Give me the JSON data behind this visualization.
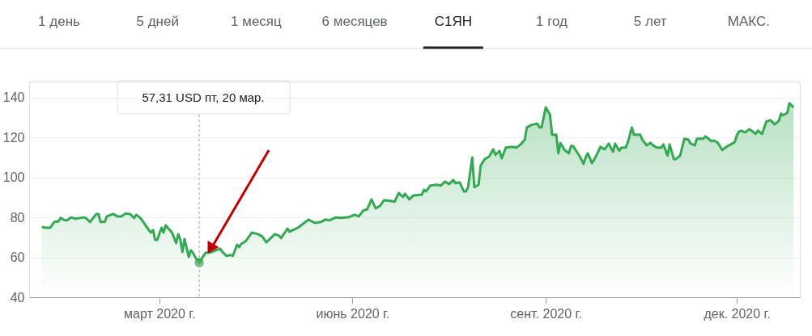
{
  "chart_data": {
    "type": "area",
    "annotations": [
      "1 день",
      "5 дней",
      "1 месяц",
      "6 месяцев",
      "С1ЯН",
      "1 год",
      "5 лет",
      "МАКС.",
      "57,31 USD  пт, 20 мар."
    ],
    "xlim": [
      "2019-12-30",
      "2020-12-31"
    ],
    "xticks": [
      {
        "value": "2020-03-01",
        "label": "март 2020 г."
      },
      {
        "value": "2020-06-01",
        "label": "июнь 2020 г."
      },
      {
        "value": "2020-09-01",
        "label": "сент. 2020 г."
      },
      {
        "value": "2020-12-01",
        "label": "дек. 2020 г."
      }
    ],
    "ylim": [
      40,
      148
    ],
    "yticks": [
      40,
      60,
      80,
      100,
      120,
      140
    ],
    "grid": "y",
    "ref_lines": [
      {
        "axis": "x",
        "value": "2020-03-20",
        "line_style": "dashed",
        "color": "#9e9e9e"
      }
    ],
    "series": [
      {
        "type": "scatter",
        "color": "#34a853",
        "x": [
          "2020-03-20"
        ],
        "values": [
          57.31
        ]
      },
      {
        "color": "#34a853",
        "x": [
          "2020-01-05",
          "2020-01-07",
          "2020-01-09",
          "2020-01-11",
          "2020-01-13",
          "2020-01-14",
          "2020-01-16",
          "2020-01-17",
          "2020-01-19",
          "2020-01-21",
          "2020-01-25",
          "2020-01-26",
          "2020-01-28",
          "2020-01-31",
          "2020-02-01",
          "2020-02-02",
          "2020-02-04",
          "2020-02-05",
          "2020-02-08",
          "2020-02-10",
          "2020-02-12",
          "2020-02-14",
          "2020-02-16",
          "2020-02-18",
          "2020-02-19",
          "2020-02-21",
          "2020-02-25",
          "2020-02-26",
          "2020-02-27",
          "2020-02-28",
          "2020-02-29",
          "2020-03-02",
          "2020-03-03",
          "2020-03-04",
          "2020-03-06",
          "2020-03-07",
          "2020-03-09",
          "2020-03-10",
          "2020-03-11",
          "2020-03-12",
          "2020-03-13",
          "2020-03-15",
          "2020-03-16",
          "2020-03-17",
          "2020-03-18",
          "2020-03-20",
          "2020-03-23",
          "2020-03-25",
          "2020-03-30",
          "2020-03-31",
          "2020-04-02",
          "2020-04-04",
          "2020-04-05",
          "2020-04-07",
          "2020-04-08",
          "2020-04-09",
          "2020-04-11",
          "2020-04-13",
          "2020-04-14",
          "2020-04-17",
          "2020-04-19",
          "2020-04-21",
          "2020-04-23",
          "2020-04-25",
          "2020-04-27",
          "2020-04-28",
          "2020-05-01",
          "2020-05-02",
          "2020-05-06",
          "2020-05-08",
          "2020-05-11",
          "2020-05-14",
          "2020-05-17",
          "2020-05-19",
          "2020-05-21",
          "2020-05-24",
          "2020-05-26",
          "2020-05-30",
          "2020-06-02",
          "2020-06-04",
          "2020-06-06",
          "2020-06-08",
          "2020-06-10",
          "2020-06-12",
          "2020-06-14",
          "2020-06-16",
          "2020-06-19",
          "2020-06-21",
          "2020-06-23",
          "2020-06-25",
          "2020-06-26",
          "2020-06-28",
          "2020-06-30",
          "2020-07-04",
          "2020-07-05",
          "2020-07-06",
          "2020-07-08",
          "2020-07-11",
          "2020-07-13",
          "2020-07-15",
          "2020-07-17",
          "2020-07-19",
          "2020-07-20",
          "2020-07-22",
          "2020-07-24",
          "2020-07-25",
          "2020-07-26",
          "2020-07-28",
          "2020-07-29",
          "2020-07-31",
          "2020-08-01",
          "2020-08-03",
          "2020-08-05",
          "2020-08-07",
          "2020-08-08",
          "2020-08-10",
          "2020-08-11",
          "2020-08-13",
          "2020-08-16",
          "2020-08-18",
          "2020-08-20",
          "2020-08-22",
          "2020-08-23",
          "2020-08-25",
          "2020-08-28",
          "2020-08-29",
          "2020-08-30",
          "2020-09-01",
          "2020-09-03",
          "2020-09-04",
          "2020-09-06",
          "2020-09-07",
          "2020-09-08",
          "2020-09-10",
          "2020-09-12",
          "2020-09-13",
          "2020-09-14",
          "2020-09-16",
          "2020-09-17",
          "2020-09-19",
          "2020-09-20",
          "2020-09-21",
          "2020-09-23",
          "2020-09-24",
          "2020-09-26",
          "2020-09-27",
          "2020-09-29",
          "2020-10-01",
          "2020-10-03",
          "2020-10-04",
          "2020-10-06",
          "2020-10-07",
          "2020-10-09",
          "2020-10-10",
          "2020-10-12",
          "2020-10-13",
          "2020-10-16",
          "2020-10-17",
          "2020-10-19",
          "2020-10-21",
          "2020-10-22",
          "2020-10-24",
          "2020-10-26",
          "2020-10-27",
          "2020-10-29",
          "2020-10-30",
          "2020-11-01",
          "2020-11-02",
          "2020-11-04",
          "2020-11-06",
          "2020-11-08",
          "2020-11-09",
          "2020-11-11",
          "2020-11-12",
          "2020-11-15",
          "2020-11-16",
          "2020-11-19",
          "2020-11-20",
          "2020-11-22",
          "2020-11-24",
          "2020-11-26",
          "2020-11-28",
          "2020-11-30",
          "2020-12-01",
          "2020-12-02",
          "2020-12-03",
          "2020-12-05",
          "2020-12-07",
          "2020-12-10",
          "2020-12-11",
          "2020-12-13",
          "2020-12-15",
          "2020-12-17",
          "2020-12-19",
          "2020-12-21",
          "2020-12-22",
          "2020-12-23",
          "2020-12-25",
          "2020-12-26",
          "2020-12-28"
        ],
        "values": [
          75.2,
          74.8,
          74.8,
          77.7,
          78,
          79.7,
          78.5,
          78.5,
          80,
          79.3,
          80,
          79.7,
          77.7,
          81.7,
          81.7,
          77.7,
          77.7,
          80.5,
          81.7,
          80.5,
          80.5,
          82,
          81.7,
          79.7,
          81.3,
          79.7,
          73.6,
          72.4,
          73.6,
          68.7,
          68.7,
          74.8,
          72.4,
          76,
          73.6,
          72.4,
          67.1,
          71.6,
          68.7,
          62.7,
          69.1,
          60.2,
          63.5,
          62.3,
          60.2,
          57.31,
          62.3,
          62.3,
          64.3,
          62.7,
          60.7,
          61.1,
          60.7,
          66.3,
          65.1,
          66.7,
          68,
          70.8,
          72.4,
          71.6,
          70.4,
          67.5,
          69.6,
          71.6,
          70.8,
          69.6,
          74.4,
          72.8,
          74.8,
          76.4,
          78.9,
          77.2,
          77.7,
          78.9,
          78.5,
          80,
          79.7,
          80,
          81.3,
          80.5,
          83.3,
          84.1,
          89,
          84.5,
          85.7,
          88.6,
          88.2,
          87.8,
          92.2,
          90.2,
          91.8,
          89,
          91,
          91.4,
          93.8,
          93,
          95.9,
          96.3,
          95.9,
          97.9,
          96.7,
          98.7,
          97.1,
          97.5,
          93,
          93,
          95.1,
          110,
          95.1,
          96.3,
          106,
          109.2,
          110.4,
          114.1,
          111.3,
          113.3,
          109.6,
          114.9,
          115.3,
          114.9,
          116.5,
          118.9,
          125,
          126.2,
          127,
          125,
          125,
          135.1,
          131.5,
          121.4,
          121.4,
          112.1,
          117.3,
          113.7,
          112.1,
          115.7,
          115.7,
          112.5,
          110.9,
          106.8,
          110,
          112.1,
          107.2,
          108.8,
          112.9,
          115.3,
          114.1,
          116.9,
          112.9,
          116.9,
          113.3,
          114.9,
          114.9,
          117.3,
          125,
          121.4,
          121.4,
          118.9,
          116.1,
          117.3,
          116.1,
          114.9,
          114.9,
          116.5,
          110.9,
          116.5,
          109.2,
          109.2,
          110.9,
          119.4,
          118.9,
          116.9,
          116.1,
          119.4,
          119.4,
          120.6,
          118.1,
          118.5,
          117.3,
          113.7,
          115.3,
          116.5,
          117.7,
          121,
          123,
          123.4,
          122.6,
          124.2,
          121.8,
          123.4,
          121.8,
          127.9,
          128.7,
          126.6,
          128.3,
          131.9,
          131.1,
          132.3,
          137.2,
          135.1
        ]
      }
    ]
  }
}
